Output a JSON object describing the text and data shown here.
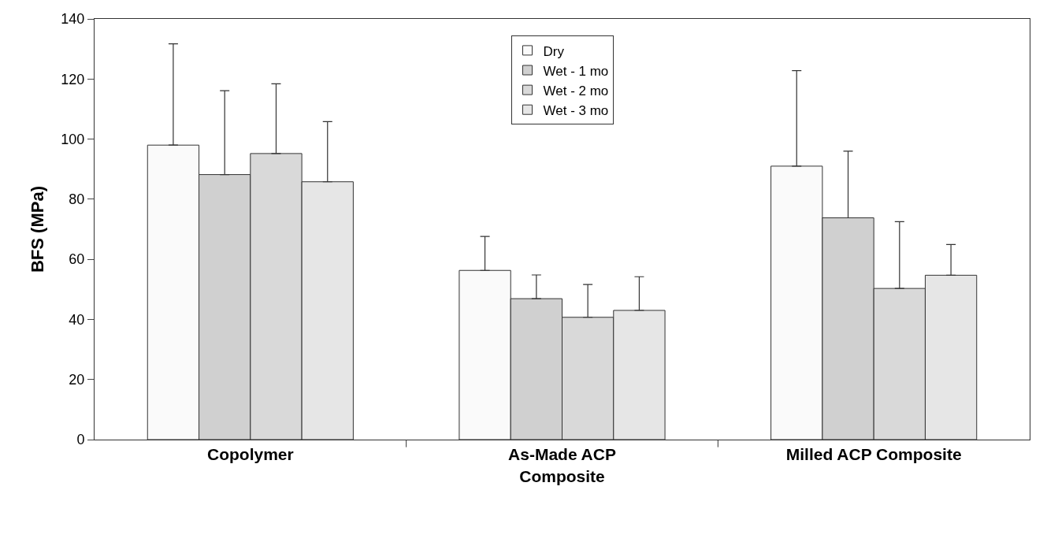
{
  "chart_data": {
    "type": "bar",
    "ylabel": "BFS (MPa)",
    "categories": [
      "Copolymer",
      "As-Made ACP Composite",
      "Milled ACP Composite"
    ],
    "series": [
      {
        "name": "Dry",
        "color": "#fafafa",
        "values": [
          98.0,
          56.3,
          91.0
        ],
        "errors": [
          [
            98.0,
            131.7
          ],
          [
            56.3,
            67.6
          ],
          [
            91.0,
            122.8
          ]
        ]
      },
      {
        "name": "Wet - 1 mo",
        "color": "#d0d0d0",
        "values": [
          88.2,
          46.9,
          73.8
        ],
        "errors": [
          [
            88.2,
            116.1
          ],
          [
            46.9,
            54.8
          ],
          [
            73.8,
            96.0
          ]
        ]
      },
      {
        "name": "Wet - 2 mo",
        "color": "#d9d9d9",
        "values": [
          95.2,
          40.7,
          50.3
        ],
        "errors": [
          [
            95.2,
            118.4
          ],
          [
            40.7,
            51.6
          ],
          [
            50.3,
            72.5
          ]
        ]
      },
      {
        "name": "Wet - 3 mo",
        "color": "#e6e6e6",
        "values": [
          85.8,
          43.0,
          54.7
        ],
        "errors": [
          [
            85.8,
            105.8
          ],
          [
            43.0,
            54.2
          ],
          [
            54.7,
            64.9
          ]
        ]
      }
    ],
    "ylim": [
      0,
      140
    ],
    "yticks": [
      0,
      20,
      40,
      60,
      80,
      100,
      120,
      140
    ],
    "grid": false,
    "legend": "top"
  }
}
